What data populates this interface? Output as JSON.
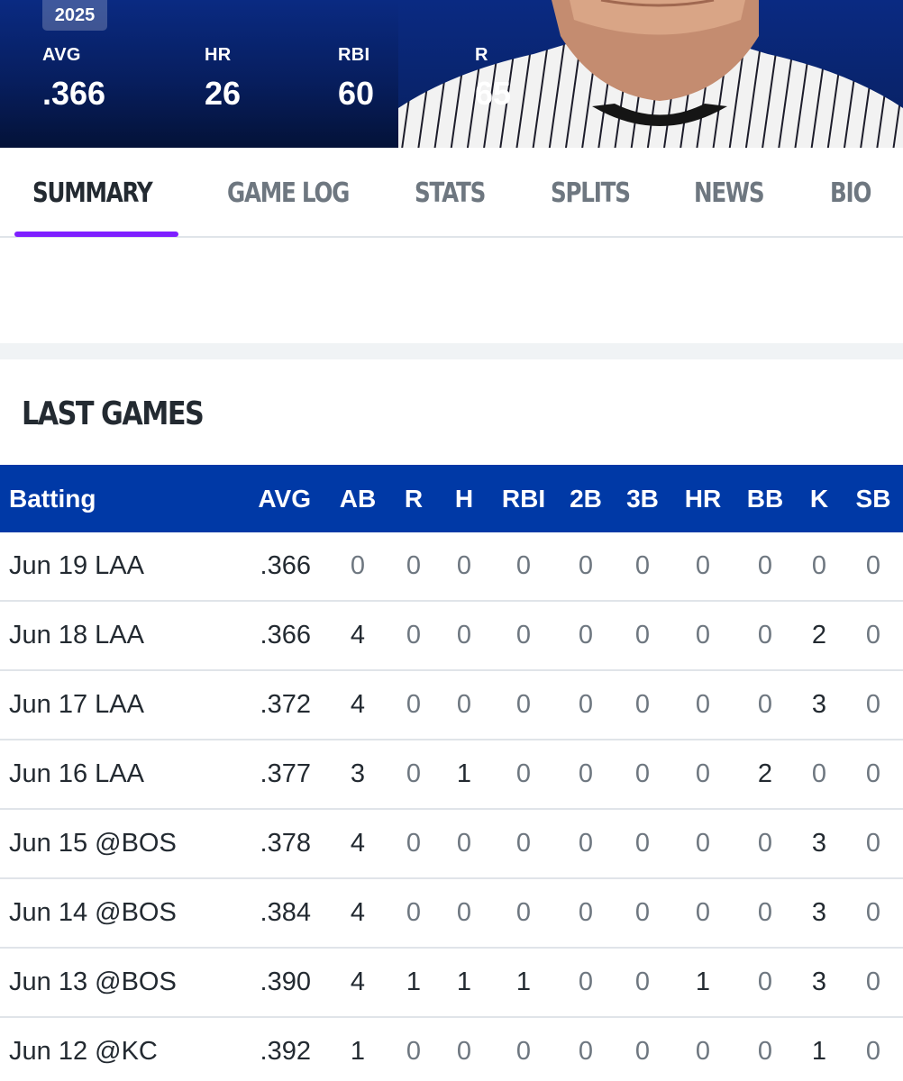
{
  "header": {
    "season": "2025",
    "stats": [
      {
        "label": "AVG",
        "value": ".366"
      },
      {
        "label": "HR",
        "value": "26"
      },
      {
        "label": "RBI",
        "value": "60"
      },
      {
        "label": "R",
        "value": "65"
      }
    ]
  },
  "tabs": [
    {
      "label": "SUMMARY",
      "active": true
    },
    {
      "label": "GAME LOG",
      "active": false
    },
    {
      "label": "STATS",
      "active": false
    },
    {
      "label": "SPLITS",
      "active": false
    },
    {
      "label": "NEWS",
      "active": false
    },
    {
      "label": "BIO",
      "active": false
    }
  ],
  "last_games": {
    "title": "LAST GAMES",
    "columns": [
      "Batting",
      "AVG",
      "AB",
      "R",
      "H",
      "RBI",
      "2B",
      "3B",
      "HR",
      "BB",
      "K",
      "SB"
    ],
    "rows": [
      [
        "Jun 19 LAA",
        ".366",
        "0",
        "0",
        "0",
        "0",
        "0",
        "0",
        "0",
        "0",
        "0",
        "0"
      ],
      [
        "Jun 18 LAA",
        ".366",
        "4",
        "0",
        "0",
        "0",
        "0",
        "0",
        "0",
        "0",
        "2",
        "0"
      ],
      [
        "Jun 17 LAA",
        ".372",
        "4",
        "0",
        "0",
        "0",
        "0",
        "0",
        "0",
        "0",
        "3",
        "0"
      ],
      [
        "Jun 16 LAA",
        ".377",
        "3",
        "0",
        "1",
        "0",
        "0",
        "0",
        "0",
        "2",
        "0",
        "0"
      ],
      [
        "Jun 15 @BOS",
        ".378",
        "4",
        "0",
        "0",
        "0",
        "0",
        "0",
        "0",
        "0",
        "3",
        "0"
      ],
      [
        "Jun 14 @BOS",
        ".384",
        "4",
        "0",
        "0",
        "0",
        "0",
        "0",
        "0",
        "0",
        "3",
        "0"
      ],
      [
        "Jun 13 @BOS",
        ".390",
        "4",
        "1",
        "1",
        "1",
        "0",
        "0",
        "1",
        "0",
        "3",
        "0"
      ],
      [
        "Jun 12 @KC",
        ".392",
        "1",
        "0",
        "0",
        "0",
        "0",
        "0",
        "0",
        "0",
        "1",
        "0"
      ]
    ]
  },
  "colors": {
    "header_bg": "#071e5e",
    "table_header_bg": "#0039a6",
    "tab_active_underline": "#7e1fff",
    "text_primary": "#232a31",
    "text_secondary": "#6e7780"
  }
}
